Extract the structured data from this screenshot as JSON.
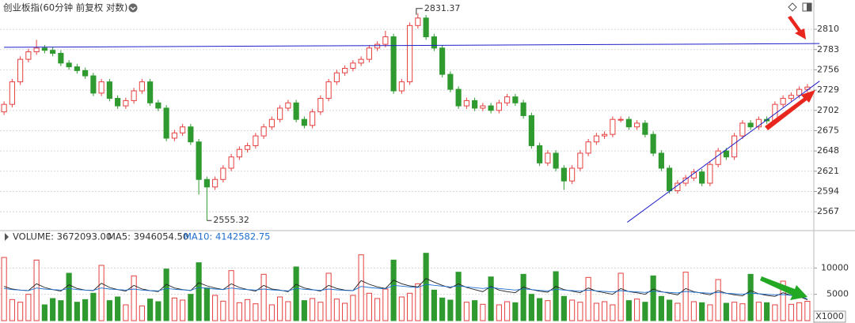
{
  "chart_data": {
    "type": "candlestick",
    "title": "创业板指(60分钟 前复权 对数)",
    "up_color": "#e5403f",
    "down_color": "#2f9a2f",
    "open": [
      2700,
      2710,
      2740,
      2770,
      2780,
      2785,
      2782,
      2778,
      2765,
      2760,
      2755,
      2748,
      2725,
      2740,
      2718,
      2708,
      2715,
      2728,
      2740,
      2712,
      2705,
      2665,
      2672,
      2680,
      2660,
      2610,
      2600,
      2610,
      2625,
      2640,
      2650,
      2655,
      2668,
      2680,
      2690,
      2705,
      2712,
      2690,
      2682,
      2700,
      2718,
      2740,
      2752,
      2758,
      2765,
      2770,
      2785,
      2790,
      2800,
      2728,
      2740,
      2815,
      2825,
      2800,
      2785,
      2750,
      2730,
      2708,
      2715,
      2705,
      2708,
      2702,
      2712,
      2720,
      2712,
      2695,
      2655,
      2632,
      2645,
      2625,
      2608,
      2625,
      2645,
      2660,
      2668,
      2670,
      2690,
      2690,
      2680,
      2685,
      2670,
      2645,
      2625,
      2595,
      2605,
      2612,
      2620,
      2605,
      2630,
      2648,
      2640,
      2668,
      2685,
      2680,
      2690,
      2688,
      2710,
      2718,
      2722,
      2730
    ],
    "high": [
      2714,
      2744,
      2774,
      2784,
      2796,
      2789,
      2786,
      2782,
      2769,
      2764,
      2759,
      2752,
      2744,
      2744,
      2722,
      2719,
      2732,
      2744,
      2744,
      2716,
      2709,
      2676,
      2684,
      2684,
      2664,
      2614,
      2614,
      2629,
      2644,
      2654,
      2659,
      2672,
      2684,
      2694,
      2709,
      2716,
      2716,
      2694,
      2704,
      2722,
      2744,
      2756,
      2762,
      2769,
      2774,
      2789,
      2794,
      2808,
      2804,
      2744,
      2819,
      2831.37,
      2829,
      2804,
      2789,
      2754,
      2734,
      2719,
      2719,
      2712,
      2712,
      2716,
      2724,
      2724,
      2716,
      2699,
      2659,
      2649,
      2649,
      2629,
      2629,
      2649,
      2664,
      2672,
      2674,
      2694,
      2694,
      2694,
      2689,
      2689,
      2674,
      2649,
      2629,
      2609,
      2616,
      2624,
      2624,
      2634,
      2652,
      2652,
      2672,
      2689,
      2689,
      2694,
      2694,
      2714,
      2722,
      2726,
      2734,
      2737
    ],
    "low": [
      2696,
      2706,
      2736,
      2766,
      2776,
      2778,
      2774,
      2761,
      2756,
      2751,
      2744,
      2721,
      2721,
      2714,
      2704,
      2704,
      2711,
      2724,
      2708,
      2701,
      2661,
      2661,
      2668,
      2656,
      2590,
      2555.32,
      2596,
      2606,
      2621,
      2636,
      2646,
      2651,
      2664,
      2676,
      2686,
      2701,
      2686,
      2678,
      2678,
      2696,
      2714,
      2736,
      2748,
      2754,
      2761,
      2766,
      2781,
      2786,
      2724,
      2724,
      2736,
      2811,
      2796,
      2781,
      2746,
      2726,
      2704,
      2704,
      2701,
      2701,
      2698,
      2698,
      2708,
      2708,
      2691,
      2651,
      2628,
      2628,
      2621,
      2596,
      2604,
      2621,
      2641,
      2656,
      2664,
      2666,
      2686,
      2676,
      2676,
      2666,
      2641,
      2621,
      2591,
      2591,
      2601,
      2608,
      2601,
      2601,
      2626,
      2636,
      2636,
      2664,
      2676,
      2676,
      2684,
      2684,
      2706,
      2714,
      2718,
      2726
    ],
    "close": [
      2710,
      2740,
      2770,
      2780,
      2785,
      2782,
      2778,
      2765,
      2760,
      2755,
      2748,
      2725,
      2740,
      2718,
      2708,
      2715,
      2728,
      2740,
      2712,
      2705,
      2665,
      2672,
      2680,
      2660,
      2610,
      2600,
      2610,
      2625,
      2640,
      2650,
      2655,
      2668,
      2680,
      2690,
      2705,
      2712,
      2690,
      2682,
      2700,
      2718,
      2740,
      2752,
      2758,
      2765,
      2770,
      2785,
      2790,
      2800,
      2728,
      2740,
      2815,
      2825,
      2800,
      2785,
      2750,
      2730,
      2708,
      2715,
      2705,
      2708,
      2702,
      2712,
      2720,
      2712,
      2695,
      2655,
      2632,
      2645,
      2625,
      2608,
      2625,
      2645,
      2660,
      2668,
      2670,
      2690,
      2690,
      2680,
      2685,
      2670,
      2645,
      2625,
      2595,
      2605,
      2612,
      2620,
      2605,
      2630,
      2648,
      2640,
      2668,
      2685,
      2680,
      2690,
      2688,
      2710,
      2718,
      2722,
      2730,
      2733
    ],
    "ylim": [
      2544,
      2849
    ],
    "yticks": [
      2567,
      2594,
      2621,
      2648,
      2675,
      2702,
      2729,
      2756,
      2783,
      2810
    ],
    "grid": true,
    "lines": [
      {
        "color": "#1f1fc8",
        "x": [
          0,
          100.5
        ],
        "values": [
          2786,
          2791
        ]
      },
      {
        "color": "#1f1fc8",
        "x": [
          76.8,
          100.5
        ],
        "values": [
          2553,
          2741
        ]
      }
    ],
    "volume": {
      "label": "VOLUME: 3672093.00",
      "ma5_label": "MA5: 3946054.50",
      "ma10_label": "MA10: 4142582.75",
      "ma5_color": "#222222",
      "ma10_color": "#1f6fd0",
      "unit_label": "X1000",
      "ylim": [
        0,
        14850
      ],
      "yticks": [
        5000,
        10000
      ],
      "values": [
        12000,
        4000,
        3500,
        5000,
        11500,
        3000,
        4200,
        3800,
        9000,
        3500,
        4000,
        5200,
        10500,
        3800,
        4500,
        3000,
        8500,
        2800,
        4100,
        3600,
        9800,
        4300,
        3900,
        5000,
        11000,
        6200,
        4800,
        3700,
        9500,
        3400,
        4000,
        3200,
        8800,
        3000,
        4500,
        3600,
        10200,
        3800,
        4200,
        3500,
        9000,
        4100,
        3300,
        4800,
        12500,
        5200,
        4200,
        6000,
        11500,
        4500,
        5200,
        7000,
        12800,
        5800,
        4300,
        3900,
        9200,
        3500,
        3800,
        3100,
        8300,
        3000,
        3600,
        3400,
        8800,
        5000,
        4200,
        3800,
        9300,
        4600,
        3900,
        3500,
        8200,
        3300,
        3600,
        3000,
        9000,
        3800,
        4100,
        3500,
        8500,
        4600,
        3900,
        3300,
        9200,
        3600,
        3400,
        3000,
        7800,
        3300,
        3500,
        3200,
        8800,
        3500,
        3400,
        3000,
        7500,
        3100,
        3400,
        3672
      ],
      "ma5": [
        6500,
        6000,
        5800,
        5700,
        7000,
        6300,
        5900,
        5600,
        6800,
        6100,
        5800,
        5700,
        7100,
        6300,
        5900,
        5600,
        6700,
        6000,
        5700,
        5500,
        6900,
        6200,
        5900,
        5700,
        7200,
        6600,
        6200,
        5900,
        7000,
        6300,
        5900,
        5600,
        6700,
        6000,
        5800,
        5500,
        6900,
        6200,
        5900,
        5600,
        6700,
        6100,
        5800,
        5700,
        7600,
        6900,
        6400,
        6100,
        7700,
        7000,
        6600,
        6400,
        8000,
        7300,
        6700,
        6200,
        7000,
        6300,
        5900,
        5500,
        6500,
        5800,
        5500,
        5300,
        6400,
        5900,
        5600,
        5400,
        6500,
        5900,
        5600,
        5300,
        6200,
        5600,
        5300,
        5000,
        6100,
        5500,
        5300,
        5000,
        6000,
        5500,
        5200,
        4900,
        6100,
        5500,
        5200,
        4900,
        5700,
        5200,
        4900,
        4700,
        5700,
        5100,
        4800,
        4600,
        5300,
        4800,
        4600,
        3946
      ],
      "ma10": [
        6100,
        5900,
        5800,
        5700,
        6200,
        6000,
        5900,
        5800,
        6100,
        5900,
        5800,
        5750,
        6200,
        6000,
        5900,
        5800,
        6000,
        5800,
        5700,
        5650,
        6100,
        5950,
        5850,
        5750,
        6300,
        6150,
        6000,
        5900,
        6200,
        6000,
        5900,
        5800,
        6000,
        5850,
        5750,
        5650,
        6100,
        5950,
        5850,
        5750,
        6000,
        5850,
        5750,
        5700,
        6500,
        6300,
        6150,
        6050,
        6700,
        6550,
        6400,
        6300,
        6900,
        6700,
        6550,
        6400,
        6600,
        6400,
        6250,
        6100,
        6300,
        6100,
        5950,
        5800,
        6050,
        5900,
        5750,
        5650,
        5950,
        5800,
        5700,
        5600,
        5800,
        5650,
        5550,
        5450,
        5700,
        5550,
        5450,
        5350,
        5600,
        5450,
        5350,
        5250,
        5550,
        5400,
        5300,
        5200,
        5350,
        5200,
        5100,
        5000,
        5250,
        5100,
        5000,
        4900,
        4950,
        4800,
        4700,
        4142.58
      ]
    }
  }
}
